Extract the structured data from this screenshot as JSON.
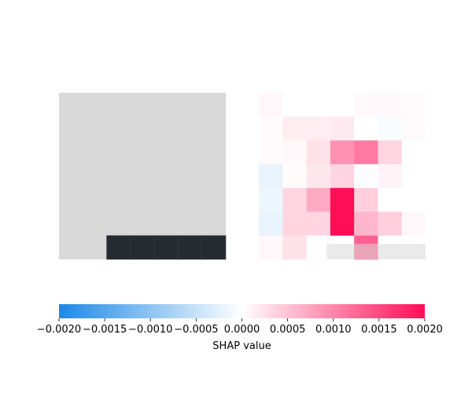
{
  "chart_data": {
    "type": "heatmap",
    "title": "",
    "panels": [
      {
        "name": "input-image",
        "rows": 7,
        "cols": 7,
        "background": "#d9d9d9",
        "dark_color": "#262b30",
        "dark_cells": [
          [
            6,
            2
          ],
          [
            6,
            3
          ],
          [
            6,
            4
          ],
          [
            6,
            5
          ],
          [
            6,
            6
          ]
        ]
      },
      {
        "name": "shap-values",
        "rows": 7,
        "cols": 7,
        "values": [
          [
            7e-05,
            0,
            0,
            0,
            5e-05,
            5e-05,
            4e-05
          ],
          [
            3e-05,
            0.00015,
            0.00015,
            0.00018,
            0,
            -5e-05,
            3e-05
          ],
          [
            3e-05,
            6e-05,
            0.00025,
            0.0009,
            0.0011,
            0.00035,
            0
          ],
          [
            -0.0002,
            3e-05,
            0.0002,
            0.00035,
            -3e-05,
            0.0001,
            0
          ],
          [
            -0.00015,
            0.00035,
            0.0007,
            0.002,
            0.0004,
            0,
            0
          ],
          [
            -0.0002,
            0.00035,
            0.00035,
            0.002,
            0.0006,
            0.0004,
            7e-05
          ],
          [
            7e-05,
            0.00025,
            0,
            0,
            0.0013,
            0,
            0
          ]
        ],
        "overlay": {
          "color": "#d9d9d9",
          "opacity": 0.55,
          "cells": [
            [
              6,
              2
            ],
            [
              6,
              3
            ],
            [
              6,
              4
            ],
            [
              6,
              5
            ],
            [
              6,
              6
            ]
          ]
        }
      }
    ],
    "colorbar": {
      "vmin": -0.002,
      "vmax": 0.002,
      "ticks": [
        "−0.0020",
        "−0.0015",
        "−0.0010",
        "−0.0005",
        "0.0000",
        "0.0005",
        "0.0010",
        "0.0015",
        "0.0020"
      ],
      "tick_values": [
        -0.002,
        -0.0015,
        -0.001,
        -0.0005,
        0,
        0.0005,
        0.001,
        0.0015,
        0.002
      ],
      "xlabel": "SHAP value",
      "colors": {
        "negative": "#1e88e5",
        "mid": "#ffffff",
        "positive": "#ff0d57"
      }
    },
    "grid": false
  }
}
